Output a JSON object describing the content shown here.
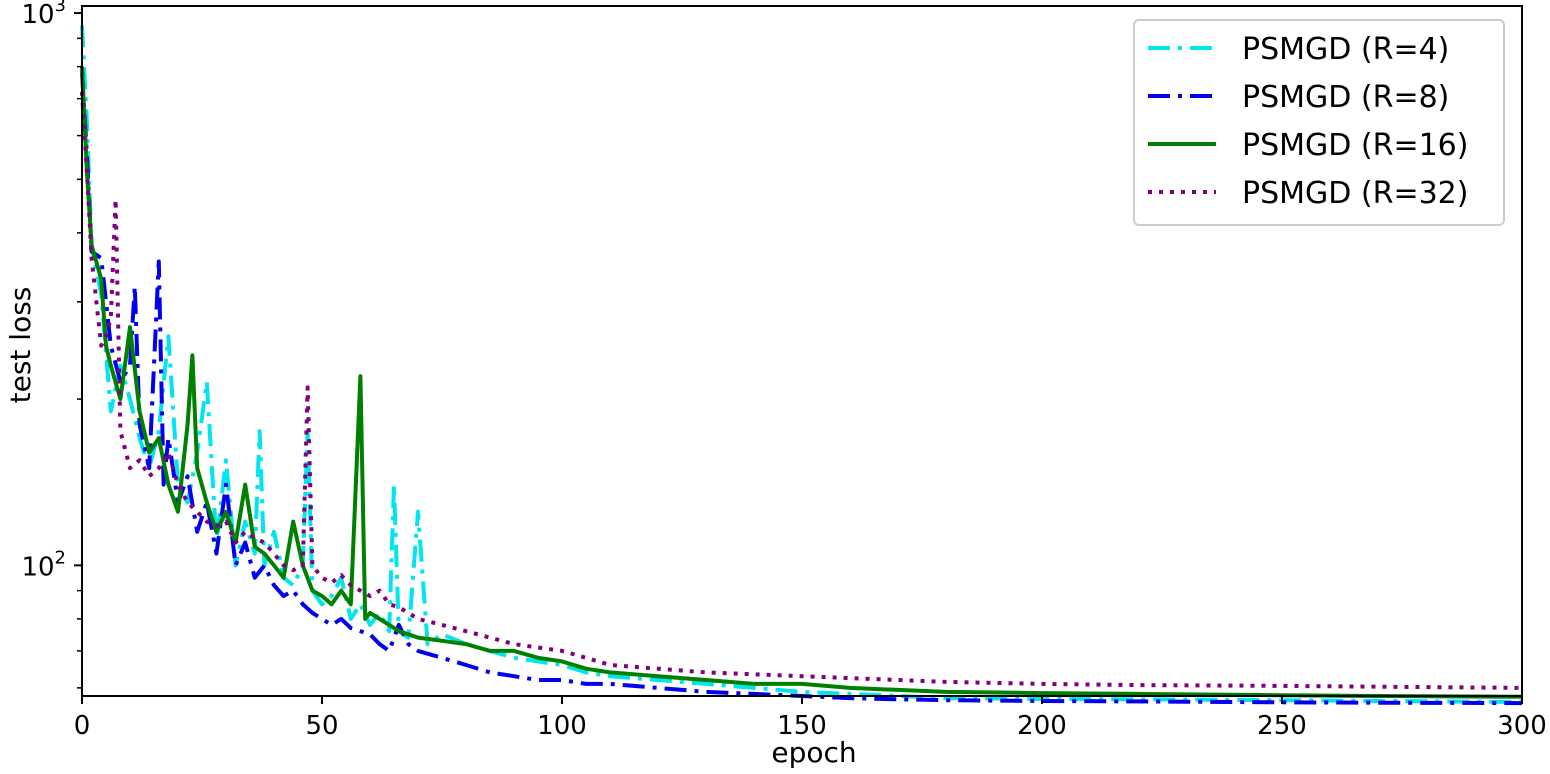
{
  "chart_data": {
    "type": "line",
    "title": "",
    "xlabel": "epoch",
    "ylabel": "test loss",
    "xlim": [
      0,
      300
    ],
    "ylim": [
      58,
      1030
    ],
    "yscale": "log",
    "grid": false,
    "legend_position": "top-right",
    "x_ticks": [
      {
        "value": 0,
        "label": "0"
      },
      {
        "value": 50,
        "label": "50"
      },
      {
        "value": 100,
        "label": "100"
      },
      {
        "value": 150,
        "label": "150"
      },
      {
        "value": 200,
        "label": "200"
      },
      {
        "value": 250,
        "label": "250"
      },
      {
        "value": 300,
        "label": "300"
      }
    ],
    "y_ticks": [
      {
        "value": 100,
        "base": "10",
        "exp": "2"
      },
      {
        "value": 1000,
        "base": "10",
        "exp": "3"
      }
    ],
    "series": [
      {
        "name": "PSMGD (R=4)",
        "color": "#00e5ee",
        "dash": "dashdot",
        "points": [
          [
            0,
            950
          ],
          [
            1,
            640
          ],
          [
            2,
            380
          ],
          [
            4,
            310
          ],
          [
            6,
            190
          ],
          [
            8,
            230
          ],
          [
            10,
            200
          ],
          [
            12,
            170
          ],
          [
            14,
            150
          ],
          [
            16,
            175
          ],
          [
            18,
            260
          ],
          [
            20,
            140
          ],
          [
            22,
            130
          ],
          [
            24,
            160
          ],
          [
            26,
            215
          ],
          [
            28,
            110
          ],
          [
            30,
            155
          ],
          [
            32,
            100
          ],
          [
            34,
            120
          ],
          [
            36,
            105
          ],
          [
            37,
            175
          ],
          [
            38,
            100
          ],
          [
            40,
            115
          ],
          [
            42,
            95
          ],
          [
            44,
            92
          ],
          [
            46,
            100
          ],
          [
            47,
            175
          ],
          [
            48,
            90
          ],
          [
            50,
            85
          ],
          [
            52,
            88
          ],
          [
            54,
            95
          ],
          [
            56,
            80
          ],
          [
            58,
            85
          ],
          [
            60,
            78
          ],
          [
            62,
            82
          ],
          [
            64,
            76
          ],
          [
            65,
            140
          ],
          [
            66,
            76
          ],
          [
            68,
            74
          ],
          [
            70,
            125
          ],
          [
            72,
            72
          ],
          [
            75,
            75
          ],
          [
            80,
            72
          ],
          [
            85,
            70
          ],
          [
            90,
            68
          ],
          [
            95,
            67
          ],
          [
            100,
            66
          ],
          [
            105,
            64
          ],
          [
            110,
            63
          ],
          [
            120,
            62
          ],
          [
            130,
            61
          ],
          [
            140,
            60
          ],
          [
            150,
            59
          ],
          [
            160,
            58.5
          ],
          [
            170,
            58
          ],
          [
            180,
            57.5
          ],
          [
            200,
            57.3
          ],
          [
            220,
            57.2
          ],
          [
            250,
            57
          ],
          [
            270,
            56.8
          ],
          [
            300,
            56.6
          ]
        ]
      },
      {
        "name": "PSMGD (R=8)",
        "color": "#0000ee",
        "dash": "dashdot",
        "points": [
          [
            0,
            780
          ],
          [
            1,
            560
          ],
          [
            2,
            370
          ],
          [
            4,
            360
          ],
          [
            6,
            250
          ],
          [
            8,
            215
          ],
          [
            10,
            230
          ],
          [
            11,
            320
          ],
          [
            12,
            180
          ],
          [
            14,
            150
          ],
          [
            16,
            355
          ],
          [
            17,
            140
          ],
          [
            18,
            170
          ],
          [
            20,
            130
          ],
          [
            22,
            145
          ],
          [
            24,
            115
          ],
          [
            26,
            130
          ],
          [
            28,
            105
          ],
          [
            30,
            140
          ],
          [
            32,
            100
          ],
          [
            34,
            110
          ],
          [
            36,
            95
          ],
          [
            38,
            100
          ],
          [
            40,
            92
          ],
          [
            42,
            88
          ],
          [
            44,
            90
          ],
          [
            46,
            85
          ],
          [
            48,
            82
          ],
          [
            50,
            80
          ],
          [
            52,
            78
          ],
          [
            54,
            80
          ],
          [
            56,
            77
          ],
          [
            58,
            76
          ],
          [
            60,
            75
          ],
          [
            62,
            72
          ],
          [
            64,
            70
          ],
          [
            66,
            78
          ],
          [
            68,
            72
          ],
          [
            70,
            70
          ],
          [
            75,
            68
          ],
          [
            80,
            66
          ],
          [
            85,
            64
          ],
          [
            90,
            63
          ],
          [
            95,
            62
          ],
          [
            100,
            62
          ],
          [
            105,
            61
          ],
          [
            110,
            61
          ],
          [
            120,
            60
          ],
          [
            130,
            59
          ],
          [
            140,
            58.5
          ],
          [
            150,
            58
          ],
          [
            160,
            57.5
          ],
          [
            170,
            57.2
          ],
          [
            180,
            57
          ],
          [
            200,
            56.8
          ],
          [
            220,
            56.7
          ],
          [
            250,
            56.5
          ],
          [
            270,
            56.4
          ],
          [
            300,
            56.3
          ]
        ]
      },
      {
        "name": "PSMGD (R=16)",
        "color": "#008000",
        "dash": "solid",
        "points": [
          [
            0,
            800
          ],
          [
            1,
            520
          ],
          [
            2,
            380
          ],
          [
            4,
            330
          ],
          [
            5,
            250
          ],
          [
            6,
            230
          ],
          [
            8,
            200
          ],
          [
            10,
            270
          ],
          [
            12,
            190
          ],
          [
            14,
            160
          ],
          [
            16,
            170
          ],
          [
            18,
            140
          ],
          [
            20,
            125
          ],
          [
            22,
            180
          ],
          [
            23,
            240
          ],
          [
            24,
            150
          ],
          [
            26,
            130
          ],
          [
            28,
            115
          ],
          [
            30,
            125
          ],
          [
            32,
            110
          ],
          [
            34,
            140
          ],
          [
            36,
            108
          ],
          [
            38,
            105
          ],
          [
            40,
            100
          ],
          [
            42,
            95
          ],
          [
            44,
            120
          ],
          [
            46,
            100
          ],
          [
            48,
            90
          ],
          [
            50,
            88
          ],
          [
            52,
            85
          ],
          [
            54,
            90
          ],
          [
            56,
            85
          ],
          [
            58,
            220
          ],
          [
            59,
            80
          ],
          [
            60,
            82
          ],
          [
            62,
            80
          ],
          [
            64,
            78
          ],
          [
            66,
            76
          ],
          [
            68,
            75
          ],
          [
            70,
            74
          ],
          [
            75,
            73
          ],
          [
            80,
            72
          ],
          [
            85,
            70
          ],
          [
            90,
            70
          ],
          [
            95,
            68
          ],
          [
            100,
            67
          ],
          [
            105,
            65
          ],
          [
            110,
            64
          ],
          [
            120,
            63
          ],
          [
            130,
            62
          ],
          [
            140,
            61
          ],
          [
            150,
            61
          ],
          [
            160,
            60
          ],
          [
            170,
            59.5
          ],
          [
            180,
            59
          ],
          [
            200,
            58.7
          ],
          [
            220,
            58.5
          ],
          [
            250,
            58.2
          ],
          [
            270,
            58
          ],
          [
            300,
            57.8
          ]
        ]
      },
      {
        "name": "PSMGD (R=32)",
        "color": "#800080",
        "dash": "dotted",
        "points": [
          [
            0,
            720
          ],
          [
            1,
            520
          ],
          [
            2,
            360
          ],
          [
            3,
            300
          ],
          [
            4,
            250
          ],
          [
            5,
            260
          ],
          [
            6,
            280
          ],
          [
            7,
            460
          ],
          [
            8,
            175
          ],
          [
            10,
            150
          ],
          [
            12,
            155
          ],
          [
            14,
            145
          ],
          [
            16,
            150
          ],
          [
            18,
            160
          ],
          [
            20,
            140
          ],
          [
            22,
            130
          ],
          [
            24,
            125
          ],
          [
            26,
            120
          ],
          [
            28,
            118
          ],
          [
            30,
            120
          ],
          [
            32,
            110
          ],
          [
            34,
            115
          ],
          [
            36,
            112
          ],
          [
            38,
            110
          ],
          [
            40,
            105
          ],
          [
            42,
            100
          ],
          [
            44,
            98
          ],
          [
            46,
            100
          ],
          [
            47,
            210
          ],
          [
            48,
            100
          ],
          [
            50,
            95
          ],
          [
            52,
            93
          ],
          [
            54,
            96
          ],
          [
            56,
            92
          ],
          [
            58,
            90
          ],
          [
            60,
            88
          ],
          [
            62,
            90
          ],
          [
            64,
            85
          ],
          [
            66,
            84
          ],
          [
            68,
            82
          ],
          [
            70,
            80
          ],
          [
            75,
            78
          ],
          [
            80,
            76
          ],
          [
            85,
            74
          ],
          [
            90,
            72
          ],
          [
            95,
            71
          ],
          [
            100,
            70
          ],
          [
            105,
            68
          ],
          [
            110,
            66
          ],
          [
            120,
            65
          ],
          [
            130,
            64
          ],
          [
            140,
            63.5
          ],
          [
            150,
            63
          ],
          [
            160,
            62.5
          ],
          [
            170,
            62
          ],
          [
            180,
            61.5
          ],
          [
            200,
            61
          ],
          [
            220,
            60.7
          ],
          [
            250,
            60.5
          ],
          [
            270,
            60.3
          ],
          [
            300,
            60
          ]
        ]
      }
    ]
  }
}
